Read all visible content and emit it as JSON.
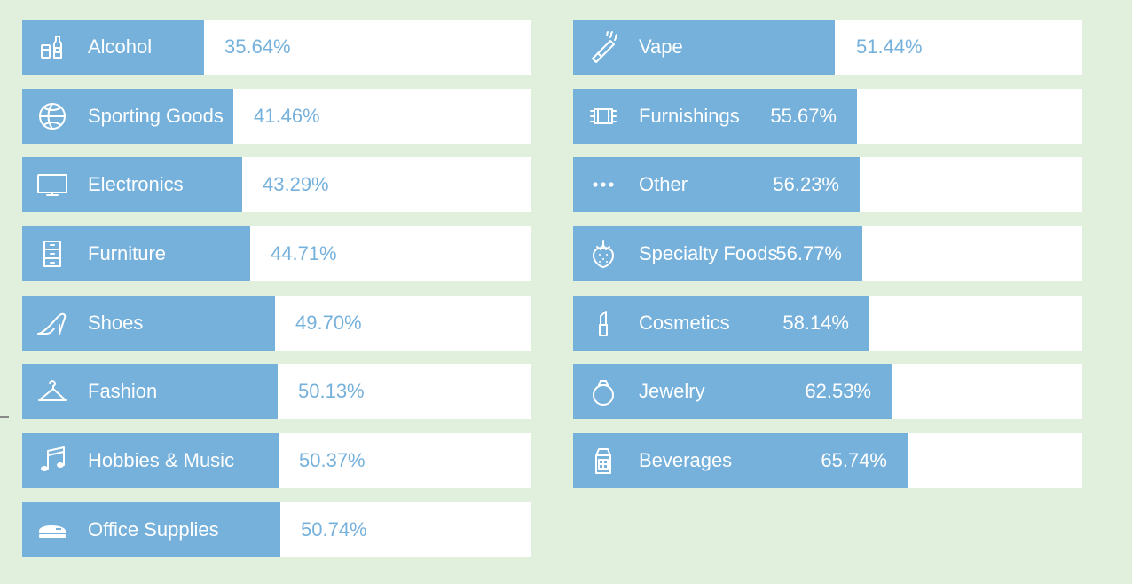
{
  "colors": {
    "background": "#e1f0dd",
    "bar_fill": "#76b1dc",
    "bar_track": "#ffffff",
    "label_text": "#ffffff"
  },
  "chart_data": {
    "type": "bar",
    "orientation": "horizontal",
    "value_range": [
      0,
      100
    ],
    "left": [
      {
        "label": "Alcohol",
        "value": 35.64,
        "display": "35.64%",
        "icon": "bottles-icon"
      },
      {
        "label": "Sporting Goods",
        "value": 41.46,
        "display": "41.46%",
        "icon": "basketball-icon"
      },
      {
        "label": "Electronics",
        "value": 43.29,
        "display": "43.29%",
        "icon": "monitor-icon"
      },
      {
        "label": "Furniture",
        "value": 44.71,
        "display": "44.71%",
        "icon": "cabinet-icon"
      },
      {
        "label": "Shoes",
        "value": 49.7,
        "display": "49.70%",
        "icon": "high-heel-icon"
      },
      {
        "label": "Fashion",
        "value": 50.13,
        "display": "50.13%",
        "icon": "hanger-icon"
      },
      {
        "label": "Hobbies & Music",
        "value": 50.37,
        "display": "50.37%",
        "icon": "music-note-icon"
      },
      {
        "label": "Office Supplies",
        "value": 50.74,
        "display": "50.74%",
        "icon": "stapler-icon"
      }
    ],
    "right": [
      {
        "label": "Vape",
        "value": 51.44,
        "display": "51.44%",
        "icon": "vape-pen-icon"
      },
      {
        "label": "Furnishings",
        "value": 55.67,
        "display": "55.67%",
        "icon": "rug-icon"
      },
      {
        "label": "Other",
        "value": 56.23,
        "display": "56.23%",
        "icon": "dots-icon"
      },
      {
        "label": "Specialty Foods",
        "value": 56.77,
        "display": "56.77%",
        "icon": "strawberry-icon"
      },
      {
        "label": "Cosmetics",
        "value": 58.14,
        "display": "58.14%",
        "icon": "lipstick-icon"
      },
      {
        "label": "Jewelry",
        "value": 62.53,
        "display": "62.53%",
        "icon": "ring-icon"
      },
      {
        "label": "Beverages",
        "value": 65.74,
        "display": "65.74%",
        "icon": "milk-carton-icon"
      }
    ]
  }
}
